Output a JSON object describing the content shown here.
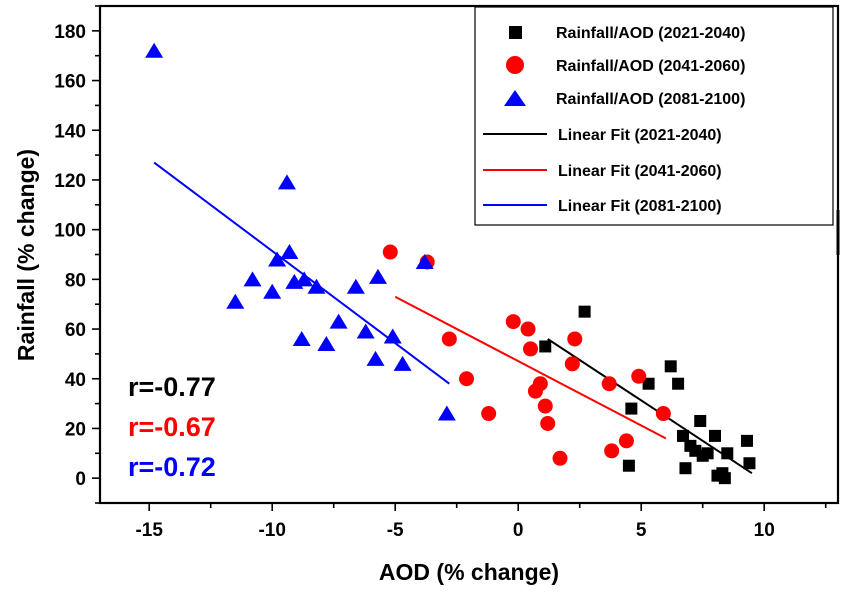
{
  "chart_data": {
    "type": "scatter",
    "title": "",
    "xlabel": "AOD (% change)",
    "ylabel": "Rainfall (% change)",
    "xlim": [
      -17,
      13
    ],
    "ylim": [
      -10,
      190
    ],
    "xticks": [
      -15,
      -10,
      -5,
      0,
      5,
      10
    ],
    "xtick_labels": [
      "-15",
      "-10",
      "-5",
      "0",
      "5",
      "10"
    ],
    "yticks": [
      0,
      20,
      40,
      60,
      80,
      100,
      120,
      140,
      160,
      180
    ],
    "ytick_labels": [
      "0",
      "20",
      "40",
      "60",
      "80",
      "100",
      "120",
      "140",
      "160",
      "180"
    ],
    "legend_position": "top-right",
    "series": [
      {
        "name": "Rainfall/AOD (2021-2040)",
        "marker": "square",
        "color": "#000000",
        "x": [
          1.1,
          2.7,
          4.5,
          4.6,
          5.3,
          6.2,
          6.5,
          6.7,
          6.8,
          7.0,
          7.2,
          7.4,
          7.5,
          7.7,
          8.0,
          8.1,
          8.3,
          8.4,
          8.5,
          9.3,
          9.4
        ],
        "y": [
          53,
          67,
          5,
          28,
          38,
          45,
          38,
          17,
          4,
          13,
          11,
          23,
          9,
          10,
          17,
          1,
          2,
          0,
          10,
          15,
          6
        ]
      },
      {
        "name": "Rainfall/AOD (2041-2060)",
        "marker": "circle",
        "color": "#ff0000",
        "x": [
          -5.2,
          -3.7,
          -2.8,
          -2.1,
          -1.2,
          -0.2,
          0.4,
          0.5,
          0.7,
          0.9,
          1.1,
          1.2,
          1.7,
          2.2,
          2.3,
          3.7,
          3.8,
          4.4,
          4.9,
          5.9
        ],
        "y": [
          91,
          87,
          56,
          40,
          26,
          63,
          60,
          52,
          35,
          38,
          29,
          22,
          8,
          46,
          56,
          38,
          11,
          15,
          41,
          26
        ]
      },
      {
        "name": "Rainfall/AOD (2081-2100)",
        "marker": "triangle",
        "color": "#0000ff",
        "x": [
          -14.8,
          -11.5,
          -10.8,
          -10.0,
          -9.8,
          -9.4,
          -9.3,
          -9.1,
          -8.8,
          -8.7,
          -8.2,
          -7.8,
          -7.3,
          -6.6,
          -6.2,
          -5.8,
          -5.7,
          -5.1,
          -4.7,
          -3.8,
          -2.9
        ],
        "y": [
          172,
          71,
          80,
          75,
          88,
          119,
          91,
          79,
          56,
          80,
          77,
          54,
          63,
          77,
          59,
          48,
          81,
          57,
          46,
          87,
          26
        ]
      }
    ],
    "fits": [
      {
        "name": "Linear Fit (2021-2040)",
        "color": "#000000",
        "x": [
          1.2,
          9.5
        ],
        "y": [
          56,
          2
        ]
      },
      {
        "name": "Linear Fit (2041-2060)",
        "color": "#ff0000",
        "x": [
          -5.0,
          6.0
        ],
        "y": [
          73,
          16
        ]
      },
      {
        "name": "Linear Fit (2081-2100)",
        "color": "#0000ff",
        "x": [
          -14.8,
          -2.8
        ],
        "y": [
          127,
          38
        ]
      }
    ],
    "annotations": [
      {
        "text": "r=-0.77",
        "color": "#000000"
      },
      {
        "text": "r=-0.67",
        "color": "#ff0000"
      },
      {
        "text": "r=-0.72",
        "color": "#0000ff"
      }
    ]
  }
}
